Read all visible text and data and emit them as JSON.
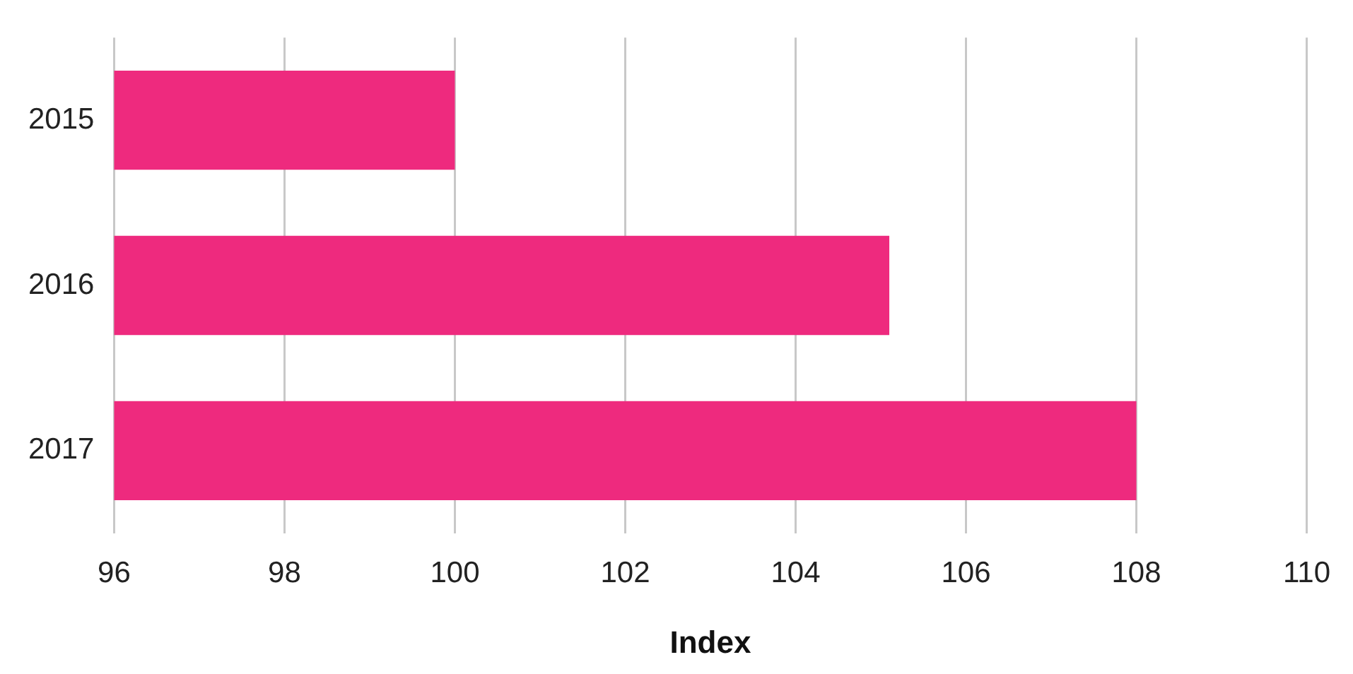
{
  "chart_data": {
    "type": "bar",
    "orientation": "horizontal",
    "xlabel": "Index",
    "categories": [
      "2015",
      "2016",
      "2017"
    ],
    "series": [
      {
        "color": "#ee2a7e",
        "values": [
          100,
          105.1,
          108
        ]
      }
    ],
    "xlim": [
      96,
      110
    ],
    "xticks": [
      96,
      98,
      100,
      102,
      104,
      106,
      108,
      110
    ],
    "grid": "x",
    "legend": false
  }
}
